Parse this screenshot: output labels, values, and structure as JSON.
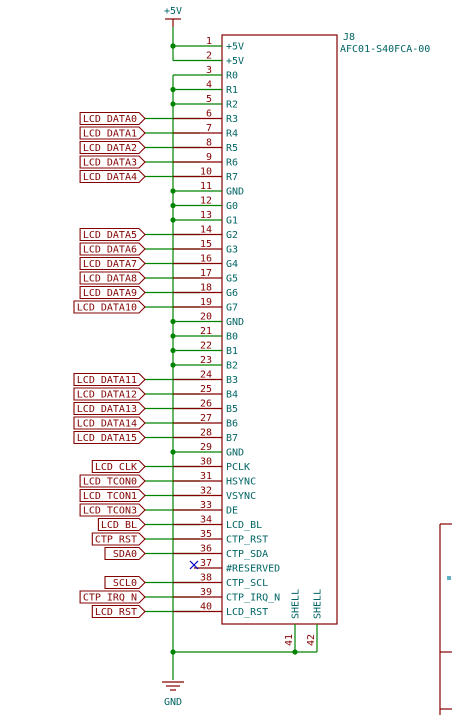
{
  "component": {
    "ref": "J8",
    "value": "AFC01-S40FCA-00"
  },
  "power": {
    "top": "+5V",
    "bottom": "GND"
  },
  "pins": [
    {
      "num": "1",
      "name": "+5V"
    },
    {
      "num": "2",
      "name": "+5V"
    },
    {
      "num": "3",
      "name": "R0"
    },
    {
      "num": "4",
      "name": "R1"
    },
    {
      "num": "5",
      "name": "R2"
    },
    {
      "num": "6",
      "name": "R3",
      "label": "LCD_DATA0"
    },
    {
      "num": "7",
      "name": "R4",
      "label": "LCD_DATA1"
    },
    {
      "num": "8",
      "name": "R5",
      "label": "LCD_DATA2"
    },
    {
      "num": "9",
      "name": "R6",
      "label": "LCD_DATA3"
    },
    {
      "num": "10",
      "name": "R7",
      "label": "LCD_DATA4"
    },
    {
      "num": "11",
      "name": "GND"
    },
    {
      "num": "12",
      "name": "G0"
    },
    {
      "num": "13",
      "name": "G1"
    },
    {
      "num": "14",
      "name": "G2",
      "label": "LCD_DATA5"
    },
    {
      "num": "15",
      "name": "G3",
      "label": "LCD_DATA6"
    },
    {
      "num": "16",
      "name": "G4",
      "label": "LCD_DATA7"
    },
    {
      "num": "17",
      "name": "G5",
      "label": "LCD_DATA8"
    },
    {
      "num": "18",
      "name": "G6",
      "label": "LCD_DATA9"
    },
    {
      "num": "19",
      "name": "G7",
      "label": "LCD_DATA10"
    },
    {
      "num": "20",
      "name": "GND"
    },
    {
      "num": "21",
      "name": "B0"
    },
    {
      "num": "22",
      "name": "B1"
    },
    {
      "num": "23",
      "name": "B2"
    },
    {
      "num": "24",
      "name": "B3",
      "label": "LCD_DATA11"
    },
    {
      "num": "25",
      "name": "B4",
      "label": "LCD_DATA12"
    },
    {
      "num": "26",
      "name": "B5",
      "label": "LCD_DATA13"
    },
    {
      "num": "27",
      "name": "B6",
      "label": "LCD_DATA14"
    },
    {
      "num": "28",
      "name": "B7",
      "label": "LCD_DATA15"
    },
    {
      "num": "29",
      "name": "GND"
    },
    {
      "num": "30",
      "name": "PCLK",
      "label": "LCD_CLK"
    },
    {
      "num": "31",
      "name": "HSYNC",
      "label": "LCD_TCON0"
    },
    {
      "num": "32",
      "name": "VSYNC",
      "label": "LCD_TCON1"
    },
    {
      "num": "33",
      "name": "DE",
      "label": "LCD_TCON3"
    },
    {
      "num": "34",
      "name": "LCD_BL",
      "label": "LCD_BL"
    },
    {
      "num": "35",
      "name": "CTP_RST",
      "label": "CTP_RST"
    },
    {
      "num": "36",
      "name": "CTP_SDA",
      "label": "SDA0"
    },
    {
      "num": "37",
      "name": "#RESERVED"
    },
    {
      "num": "38",
      "name": "CTP_SCL",
      "label": "SCL0"
    },
    {
      "num": "39",
      "name": "CTP_IRQ_N",
      "label": "CTP_IRQ_N"
    },
    {
      "num": "40",
      "name": "LCD_RST",
      "label": "LCD_RST"
    }
  ],
  "shell_pins": [
    {
      "num": "41",
      "name": "SHELL"
    },
    {
      "num": "42",
      "name": "SHELL"
    }
  ],
  "colors": {
    "wire": "#008400",
    "symbol": "#840000",
    "text": "#006464"
  }
}
